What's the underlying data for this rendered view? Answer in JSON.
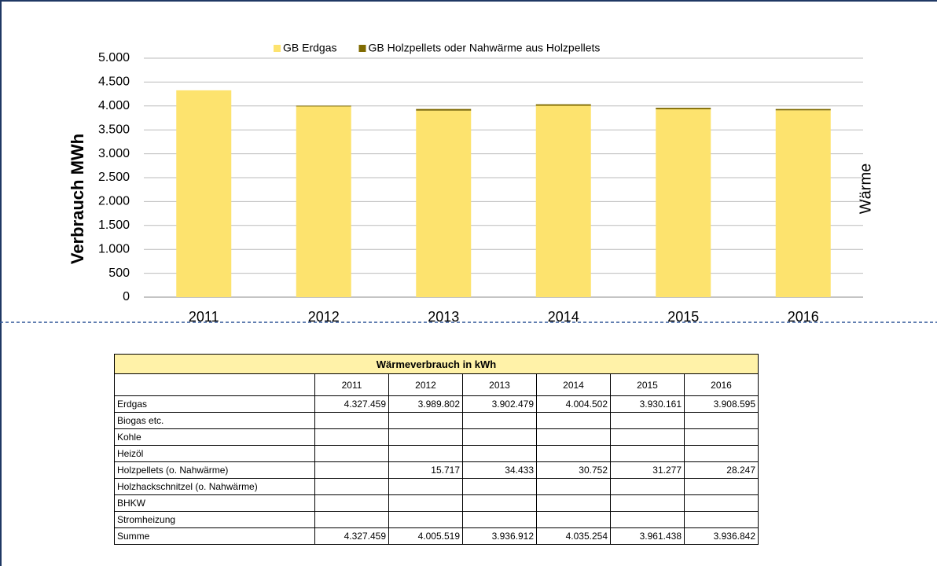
{
  "chart_data": {
    "type": "stacked-bar",
    "y_label": "Verbrauch MWh",
    "side_label": "Wärme",
    "categories": [
      "2011",
      "2012",
      "2013",
      "2014",
      "2015",
      "2016"
    ],
    "series": [
      {
        "name": "GB Erdgas",
        "color": "#fde36e",
        "values": [
          4327.459,
          3989.802,
          3902.479,
          4004.502,
          3930.161,
          3908.595
        ]
      },
      {
        "name": "GB Holzpellets oder Nahwärme aus Holzpellets",
        "color": "#7f6a00",
        "values": [
          null,
          15.717,
          34.433,
          30.752,
          31.277,
          28.247
        ]
      }
    ],
    "ylim": [
      0,
      5000
    ],
    "yticks": [
      0,
      500,
      {
        "value": 1000,
        "label": "1.000"
      },
      {
        "value": 1500,
        "label": "1.500"
      },
      {
        "value": 2000,
        "label": "2.000"
      },
      {
        "value": 2500,
        "label": "2.500"
      },
      {
        "value": 3000,
        "label": "3.000"
      },
      {
        "value": 3500,
        "label": "3.500"
      },
      {
        "value": 4000,
        "label": "4.000"
      },
      {
        "value": 4500,
        "label": "4.500"
      },
      {
        "value": 5000,
        "label": "5.000"
      }
    ],
    "grid": true,
    "legend": "top"
  },
  "table": {
    "title": "Wärmeverbrauch in kWh",
    "columns": [
      "2011",
      "2012",
      "2013",
      "2014",
      "2015",
      "2016"
    ],
    "rows": [
      {
        "label": "Erdgas",
        "cells": [
          "4.327.459",
          "3.989.802",
          "3.902.479",
          "4.004.502",
          "3.930.161",
          "3.908.595"
        ]
      },
      {
        "label": "Biogas etc.",
        "cells": [
          null,
          null,
          null,
          null,
          null,
          null
        ]
      },
      {
        "label": "Kohle",
        "cells": [
          null,
          null,
          null,
          null,
          null,
          null
        ]
      },
      {
        "label": "Heizöl",
        "cells": [
          null,
          null,
          null,
          null,
          null,
          null
        ]
      },
      {
        "label": "Holzpellets (o. Nahwärme)",
        "cells": [
          null,
          "15.717",
          "34.433",
          "30.752",
          "31.277",
          "28.247"
        ]
      },
      {
        "label": "Holzhackschnitzel (o. Nahwärme)",
        "cells": [
          null,
          null,
          null,
          null,
          null,
          null
        ]
      },
      {
        "label": "BHKW",
        "cells": [
          null,
          null,
          null,
          null,
          null,
          null
        ]
      },
      {
        "label": "Stromheizung",
        "cells": [
          null,
          null,
          null,
          null,
          null,
          null
        ]
      },
      {
        "label": "Summe",
        "cells": [
          "4.327.459",
          "4.005.519",
          "3.936.912",
          "4.035.254",
          "3.961.438",
          "3.936.842"
        ]
      }
    ]
  }
}
